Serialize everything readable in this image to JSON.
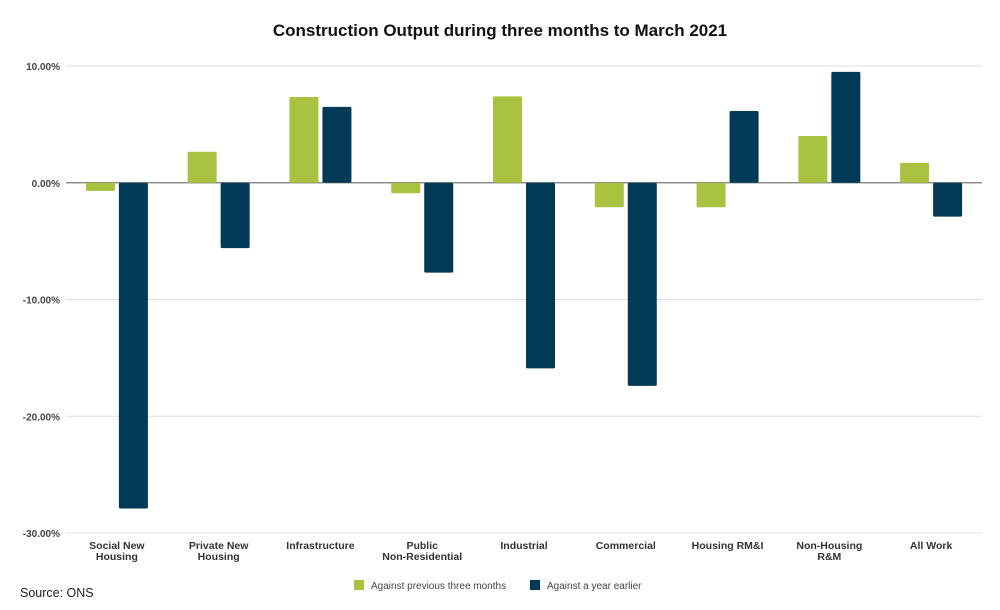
{
  "chart_data": {
    "type": "bar",
    "title": "Construction Output during three months to March 2021",
    "categories": [
      [
        "Social New",
        "Housing"
      ],
      [
        "Private New",
        "Housing"
      ],
      [
        "Infrastructure"
      ],
      [
        "Public",
        "Non-Residential"
      ],
      [
        "Industrial"
      ],
      [
        "Commercial"
      ],
      [
        "Housing RM&I"
      ],
      [
        "Non-Housing",
        "R&M"
      ],
      [
        "All Work"
      ]
    ],
    "series": [
      {
        "name": "Against previous three months",
        "color": "#a9c23f",
        "values": [
          -0.7,
          2.65,
          7.35,
          -0.9,
          7.4,
          -2.1,
          -2.1,
          4.0,
          1.7
        ]
      },
      {
        "name": "Against a year earlier",
        "color": "#003a57",
        "values": [
          -27.9,
          -5.6,
          6.5,
          -7.7,
          -15.9,
          -17.4,
          6.15,
          9.5,
          -2.9
        ]
      }
    ],
    "ylim": [
      -30,
      10
    ],
    "yticks": [
      10,
      0,
      -10,
      -20,
      -30
    ],
    "ytick_labels": [
      "10.00%",
      "0.00%",
      "-10.00%",
      "-20.00%",
      "-30.00%"
    ],
    "grid": true,
    "legend_position": "bottom"
  },
  "source": "Source: ONS"
}
